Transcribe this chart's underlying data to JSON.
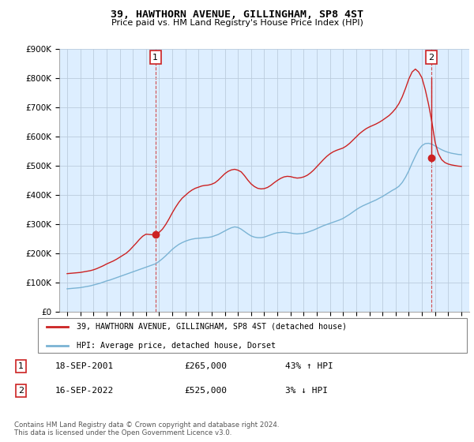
{
  "title": "39, HAWTHORN AVENUE, GILLINGHAM, SP8 4ST",
  "subtitle": "Price paid vs. HM Land Registry's House Price Index (HPI)",
  "legend_line1": "39, HAWTHORN AVENUE, GILLINGHAM, SP8 4ST (detached house)",
  "legend_line2": "HPI: Average price, detached house, Dorset",
  "annotation1_date": "18-SEP-2001",
  "annotation1_price": "£265,000",
  "annotation1_hpi": "43% ↑ HPI",
  "annotation2_date": "16-SEP-2022",
  "annotation2_price": "£525,000",
  "annotation2_hpi": "3% ↓ HPI",
  "footnote": "Contains HM Land Registry data © Crown copyright and database right 2024.\nThis data is licensed under the Open Government Licence v3.0.",
  "hpi_color": "#7ab3d4",
  "price_color": "#cc2222",
  "bg_color": "#ddeeff",
  "ylim": [
    0,
    900000
  ],
  "yticks": [
    0,
    100000,
    200000,
    300000,
    400000,
    500000,
    600000,
    700000,
    800000,
    900000
  ],
  "sale1_year": 2001.72,
  "sale1_price": 265000,
  "sale2_year": 2022.72,
  "sale2_price": 525000,
  "sale2_peak": 800000,
  "hpi_x": [
    1995,
    1995.25,
    1995.5,
    1995.75,
    1996,
    1996.25,
    1996.5,
    1996.75,
    1997,
    1997.25,
    1997.5,
    1997.75,
    1998,
    1998.25,
    1998.5,
    1998.75,
    1999,
    1999.25,
    1999.5,
    1999.75,
    2000,
    2000.25,
    2000.5,
    2000.75,
    2001,
    2001.25,
    2001.5,
    2001.75,
    2002,
    2002.25,
    2002.5,
    2002.75,
    2003,
    2003.25,
    2003.5,
    2003.75,
    2004,
    2004.25,
    2004.5,
    2004.75,
    2005,
    2005.25,
    2005.5,
    2005.75,
    2006,
    2006.25,
    2006.5,
    2006.75,
    2007,
    2007.25,
    2007.5,
    2007.75,
    2008,
    2008.25,
    2008.5,
    2008.75,
    2009,
    2009.25,
    2009.5,
    2009.75,
    2010,
    2010.25,
    2010.5,
    2010.75,
    2011,
    2011.25,
    2011.5,
    2011.75,
    2012,
    2012.25,
    2012.5,
    2012.75,
    2013,
    2013.25,
    2013.5,
    2013.75,
    2014,
    2014.25,
    2014.5,
    2014.75,
    2015,
    2015.25,
    2015.5,
    2015.75,
    2016,
    2016.25,
    2016.5,
    2016.75,
    2017,
    2017.25,
    2017.5,
    2017.75,
    2018,
    2018.25,
    2018.5,
    2018.75,
    2019,
    2019.25,
    2019.5,
    2019.75,
    2020,
    2020.25,
    2020.5,
    2020.75,
    2021,
    2021.25,
    2021.5,
    2021.75,
    2022,
    2022.25,
    2022.5,
    2022.75,
    2023,
    2023.25,
    2023.5,
    2023.75,
    2024,
    2024.25,
    2024.5,
    2024.75,
    2025
  ],
  "hpi_y": [
    78000,
    79000,
    80000,
    81000,
    82000,
    84000,
    86000,
    88000,
    91000,
    94000,
    97000,
    101000,
    105000,
    108000,
    112000,
    116000,
    120000,
    124000,
    128000,
    132000,
    136000,
    140000,
    144000,
    148000,
    152000,
    156000,
    160000,
    164000,
    172000,
    181000,
    191000,
    202000,
    213000,
    222000,
    230000,
    236000,
    241000,
    245000,
    248000,
    250000,
    251000,
    252000,
    253000,
    254000,
    256000,
    260000,
    264000,
    270000,
    276000,
    282000,
    287000,
    290000,
    288000,
    282000,
    274000,
    266000,
    259000,
    255000,
    253000,
    253000,
    255000,
    259000,
    263000,
    267000,
    270000,
    271000,
    272000,
    271000,
    269000,
    267000,
    266000,
    267000,
    268000,
    271000,
    275000,
    279000,
    284000,
    289000,
    294000,
    298000,
    302000,
    306000,
    310000,
    314000,
    319000,
    326000,
    333000,
    341000,
    349000,
    356000,
    362000,
    367000,
    372000,
    377000,
    382000,
    388000,
    394000,
    401000,
    408000,
    415000,
    421000,
    429000,
    442000,
    460000,
    482000,
    508000,
    532000,
    554000,
    568000,
    575000,
    576000,
    573000,
    567000,
    560000,
    554000,
    549000,
    545000,
    542000,
    540000,
    538000,
    537000
  ],
  "price_x": [
    1995,
    1995.25,
    1995.5,
    1995.75,
    1996,
    1996.25,
    1996.5,
    1996.75,
    1997,
    1997.25,
    1997.5,
    1997.75,
    1998,
    1998.25,
    1998.5,
    1998.75,
    1999,
    1999.25,
    1999.5,
    1999.75,
    2000,
    2000.25,
    2000.5,
    2000.75,
    2001,
    2001.25,
    2001.5,
    2001.75,
    2002,
    2002.25,
    2002.5,
    2002.75,
    2003,
    2003.25,
    2003.5,
    2003.75,
    2004,
    2004.25,
    2004.5,
    2004.75,
    2005,
    2005.25,
    2005.5,
    2005.75,
    2006,
    2006.25,
    2006.5,
    2006.75,
    2007,
    2007.25,
    2007.5,
    2007.75,
    2008,
    2008.25,
    2008.5,
    2008.75,
    2009,
    2009.25,
    2009.5,
    2009.75,
    2010,
    2010.25,
    2010.5,
    2010.75,
    2011,
    2011.25,
    2011.5,
    2011.75,
    2012,
    2012.25,
    2012.5,
    2012.75,
    2013,
    2013.25,
    2013.5,
    2013.75,
    2014,
    2014.25,
    2014.5,
    2014.75,
    2015,
    2015.25,
    2015.5,
    2015.75,
    2016,
    2016.25,
    2016.5,
    2016.75,
    2017,
    2017.25,
    2017.5,
    2017.75,
    2018,
    2018.25,
    2018.5,
    2018.75,
    2019,
    2019.25,
    2019.5,
    2019.75,
    2020,
    2020.25,
    2020.5,
    2020.75,
    2021,
    2021.25,
    2021.5,
    2021.75,
    2022,
    2022.25,
    2022.5,
    2022.75,
    2023,
    2023.25,
    2023.5,
    2023.75,
    2024,
    2024.25,
    2024.5,
    2024.75,
    2025
  ],
  "price_y": [
    130000,
    131000,
    132000,
    133000,
    134000,
    136000,
    138000,
    140000,
    143000,
    147000,
    152000,
    157000,
    163000,
    168000,
    173000,
    179000,
    186000,
    193000,
    200000,
    210000,
    222000,
    234000,
    247000,
    258000,
    265000,
    264000,
    263000,
    265000,
    271000,
    282000,
    298000,
    317000,
    338000,
    357000,
    374000,
    388000,
    398000,
    408000,
    416000,
    422000,
    426000,
    430000,
    432000,
    433000,
    436000,
    441000,
    450000,
    461000,
    472000,
    480000,
    485000,
    487000,
    484000,
    478000,
    465000,
    450000,
    437000,
    428000,
    422000,
    420000,
    421000,
    425000,
    432000,
    441000,
    449000,
    456000,
    461000,
    463000,
    462000,
    459000,
    457000,
    458000,
    461000,
    466000,
    474000,
    484000,
    496000,
    508000,
    520000,
    531000,
    540000,
    547000,
    552000,
    556000,
    560000,
    567000,
    576000,
    587000,
    598000,
    609000,
    618000,
    626000,
    632000,
    637000,
    642000,
    648000,
    655000,
    663000,
    671000,
    682000,
    695000,
    712000,
    735000,
    764000,
    796000,
    820000,
    830000,
    820000,
    800000,
    760000,
    710000,
    650000,
    580000,
    540000,
    520000,
    510000,
    505000,
    502000,
    500000,
    498000,
    497000
  ]
}
